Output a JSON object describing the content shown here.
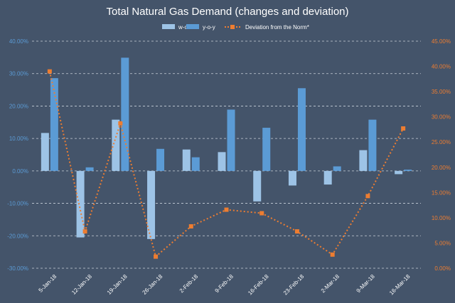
{
  "chart_data": {
    "type": "bar",
    "title": "Total Natural Gas Demand (changes and deviation)",
    "categories": [
      "5-Jan-18",
      "12-Jan-18",
      "19-Jan-18",
      "26-Jan-18",
      "2-Feb-18",
      "9-Feb-18",
      "16-Feb-18",
      "23-Feb-18",
      "2-Mar-18",
      "9-Mar-18",
      "16-Mar-18"
    ],
    "series": [
      {
        "name": "w-o-w",
        "kind": "bar",
        "axis": "left",
        "color": "#9dc3e6",
        "values": [
          11.7,
          -20.5,
          15.8,
          -21.0,
          6.6,
          5.8,
          -9.4,
          -4.5,
          -4.2,
          6.4,
          -1.0
        ]
      },
      {
        "name": "y-o-y",
        "kind": "bar",
        "axis": "left",
        "color": "#5b9bd5",
        "values": [
          28.6,
          1.1,
          34.9,
          6.8,
          4.2,
          18.9,
          13.3,
          25.5,
          1.4,
          15.8,
          0.4
        ]
      },
      {
        "name": "Deviation from the Norm*",
        "kind": "line",
        "axis": "right",
        "color": "#ed7d31",
        "values": [
          39.0,
          7.3,
          28.7,
          2.3,
          8.3,
          11.6,
          10.9,
          7.3,
          2.7,
          14.3,
          27.7
        ]
      }
    ],
    "yleft": {
      "min": -30,
      "max": 40,
      "step": 10,
      "ticks": [
        "-30.00%",
        "-20.00%",
        "-10.00%",
        "0.00%",
        "10.00%",
        "20.00%",
        "30.00%",
        "40.00%"
      ]
    },
    "yright": {
      "min": 0,
      "max": 45,
      "step": 5,
      "ticks": [
        "0.00%",
        "5.00%",
        "10.00%",
        "15.00%",
        "20.00%",
        "25.00%",
        "30.00%",
        "35.00%",
        "40.00%",
        "45.00%"
      ]
    },
    "grid": true,
    "legend": "top"
  }
}
